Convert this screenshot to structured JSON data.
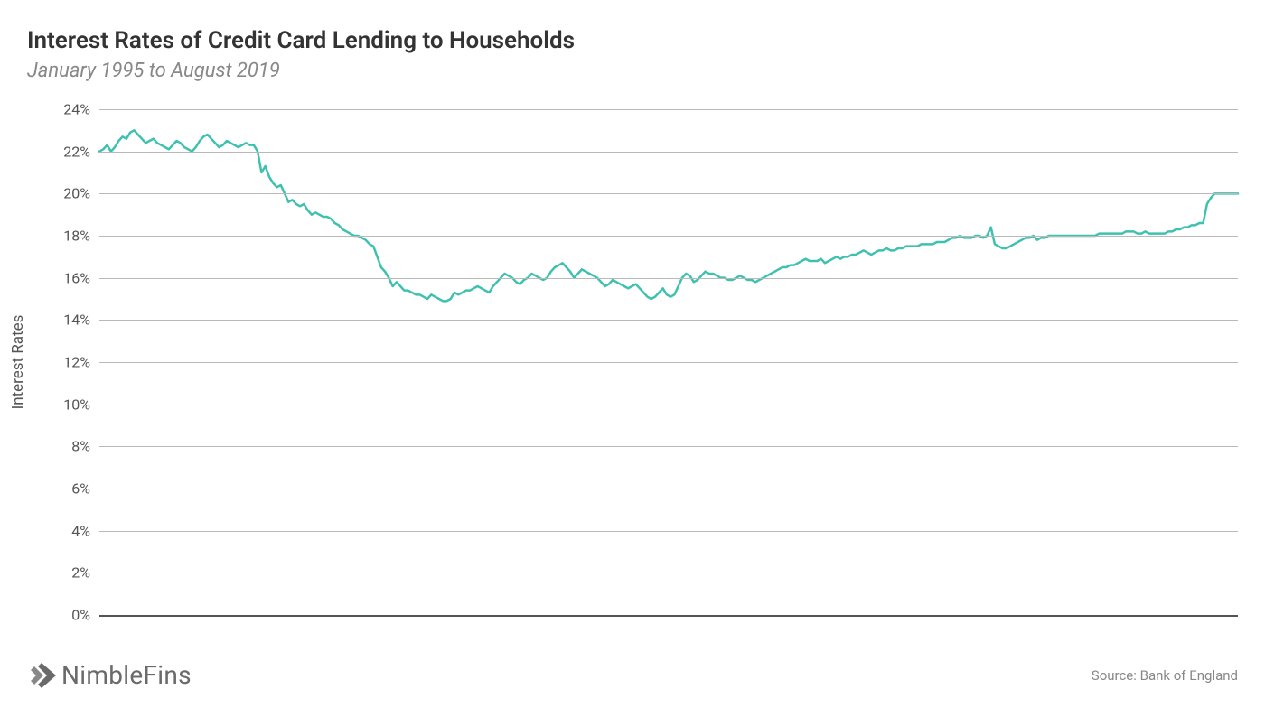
{
  "title": "Interest Rates of Credit Card Lending to Households",
  "subtitle": "January 1995 to August 2019",
  "y_axis_label": "Interest Rates",
  "source_text": "Source: Bank of England",
  "brand_text": "NimbleFins",
  "chart": {
    "type": "line",
    "line_color": "#3fc1af",
    "line_width": 2.5,
    "background_color": "#ffffff",
    "grid_color": "#b9b9b9",
    "baseline_color": "#555555",
    "text_color": "#555555",
    "title_color": "#333333",
    "subtitle_color": "#888888",
    "ylim": [
      0,
      24
    ],
    "ytick_step": 2,
    "ytick_suffix": "%",
    "title_fontsize": 26,
    "subtitle_fontsize": 22,
    "tick_fontsize": 16,
    "axis_label_fontsize": 17,
    "x_range": [
      "1995-01",
      "2019-08"
    ],
    "x_count": 296,
    "values": [
      22.0,
      22.1,
      22.3,
      22.0,
      22.2,
      22.5,
      22.7,
      22.6,
      22.9,
      23.0,
      22.8,
      22.6,
      22.4,
      22.5,
      22.6,
      22.4,
      22.3,
      22.2,
      22.1,
      22.3,
      22.5,
      22.4,
      22.2,
      22.1,
      22.0,
      22.2,
      22.5,
      22.7,
      22.8,
      22.6,
      22.4,
      22.2,
      22.3,
      22.5,
      22.4,
      22.3,
      22.2,
      22.3,
      22.4,
      22.3,
      22.3,
      22.0,
      21.0,
      21.3,
      20.8,
      20.5,
      20.3,
      20.4,
      20.0,
      19.6,
      19.7,
      19.5,
      19.4,
      19.5,
      19.2,
      19.0,
      19.1,
      19.0,
      18.9,
      18.9,
      18.8,
      18.6,
      18.5,
      18.3,
      18.2,
      18.1,
      18.0,
      18.0,
      17.9,
      17.8,
      17.6,
      17.5,
      17.0,
      16.5,
      16.3,
      16.0,
      15.6,
      15.8,
      15.6,
      15.4,
      15.4,
      15.3,
      15.2,
      15.2,
      15.1,
      15.0,
      15.2,
      15.1,
      15.0,
      14.9,
      14.9,
      15.0,
      15.3,
      15.2,
      15.3,
      15.4,
      15.4,
      15.5,
      15.6,
      15.5,
      15.4,
      15.3,
      15.6,
      15.8,
      16.0,
      16.2,
      16.1,
      16.0,
      15.8,
      15.7,
      15.9,
      16.0,
      16.2,
      16.1,
      16.0,
      15.9,
      16.0,
      16.3,
      16.5,
      16.6,
      16.7,
      16.5,
      16.3,
      16.0,
      16.2,
      16.4,
      16.3,
      16.2,
      16.1,
      16.0,
      15.8,
      15.6,
      15.7,
      15.9,
      15.8,
      15.7,
      15.6,
      15.5,
      15.6,
      15.7,
      15.5,
      15.3,
      15.1,
      15.0,
      15.1,
      15.3,
      15.5,
      15.2,
      15.1,
      15.2,
      15.6,
      16.0,
      16.2,
      16.1,
      15.8,
      15.9,
      16.1,
      16.3,
      16.2,
      16.2,
      16.1,
      16.0,
      16.0,
      15.9,
      15.9,
      16.0,
      16.1,
      16.0,
      15.9,
      15.9,
      15.8,
      15.9,
      16.0,
      16.1,
      16.2,
      16.3,
      16.4,
      16.5,
      16.5,
      16.6,
      16.6,
      16.7,
      16.8,
      16.9,
      16.8,
      16.8,
      16.8,
      16.9,
      16.7,
      16.8,
      16.9,
      17.0,
      16.9,
      17.0,
      17.0,
      17.1,
      17.1,
      17.2,
      17.3,
      17.2,
      17.1,
      17.2,
      17.3,
      17.3,
      17.4,
      17.3,
      17.3,
      17.4,
      17.4,
      17.5,
      17.5,
      17.5,
      17.5,
      17.6,
      17.6,
      17.6,
      17.6,
      17.7,
      17.7,
      17.7,
      17.8,
      17.9,
      17.9,
      18.0,
      17.9,
      17.9,
      17.9,
      18.0,
      18.0,
      17.9,
      18.0,
      18.4,
      17.6,
      17.5,
      17.4,
      17.4,
      17.5,
      17.6,
      17.7,
      17.8,
      17.9,
      17.9,
      18.0,
      17.8,
      17.9,
      17.9,
      18.0,
      18.0,
      18.0,
      18.0,
      18.0,
      18.0,
      18.0,
      18.0,
      18.0,
      18.0,
      18.0,
      18.0,
      18.0,
      18.1,
      18.1,
      18.1,
      18.1,
      18.1,
      18.1,
      18.1,
      18.2,
      18.2,
      18.2,
      18.1,
      18.1,
      18.2,
      18.1,
      18.1,
      18.1,
      18.1,
      18.1,
      18.2,
      18.2,
      18.3,
      18.3,
      18.4,
      18.4,
      18.5,
      18.5,
      18.6,
      18.6,
      19.5,
      19.8,
      20.0,
      20.0,
      20.0,
      20.0,
      20.0,
      20.0,
      20.0
    ]
  }
}
